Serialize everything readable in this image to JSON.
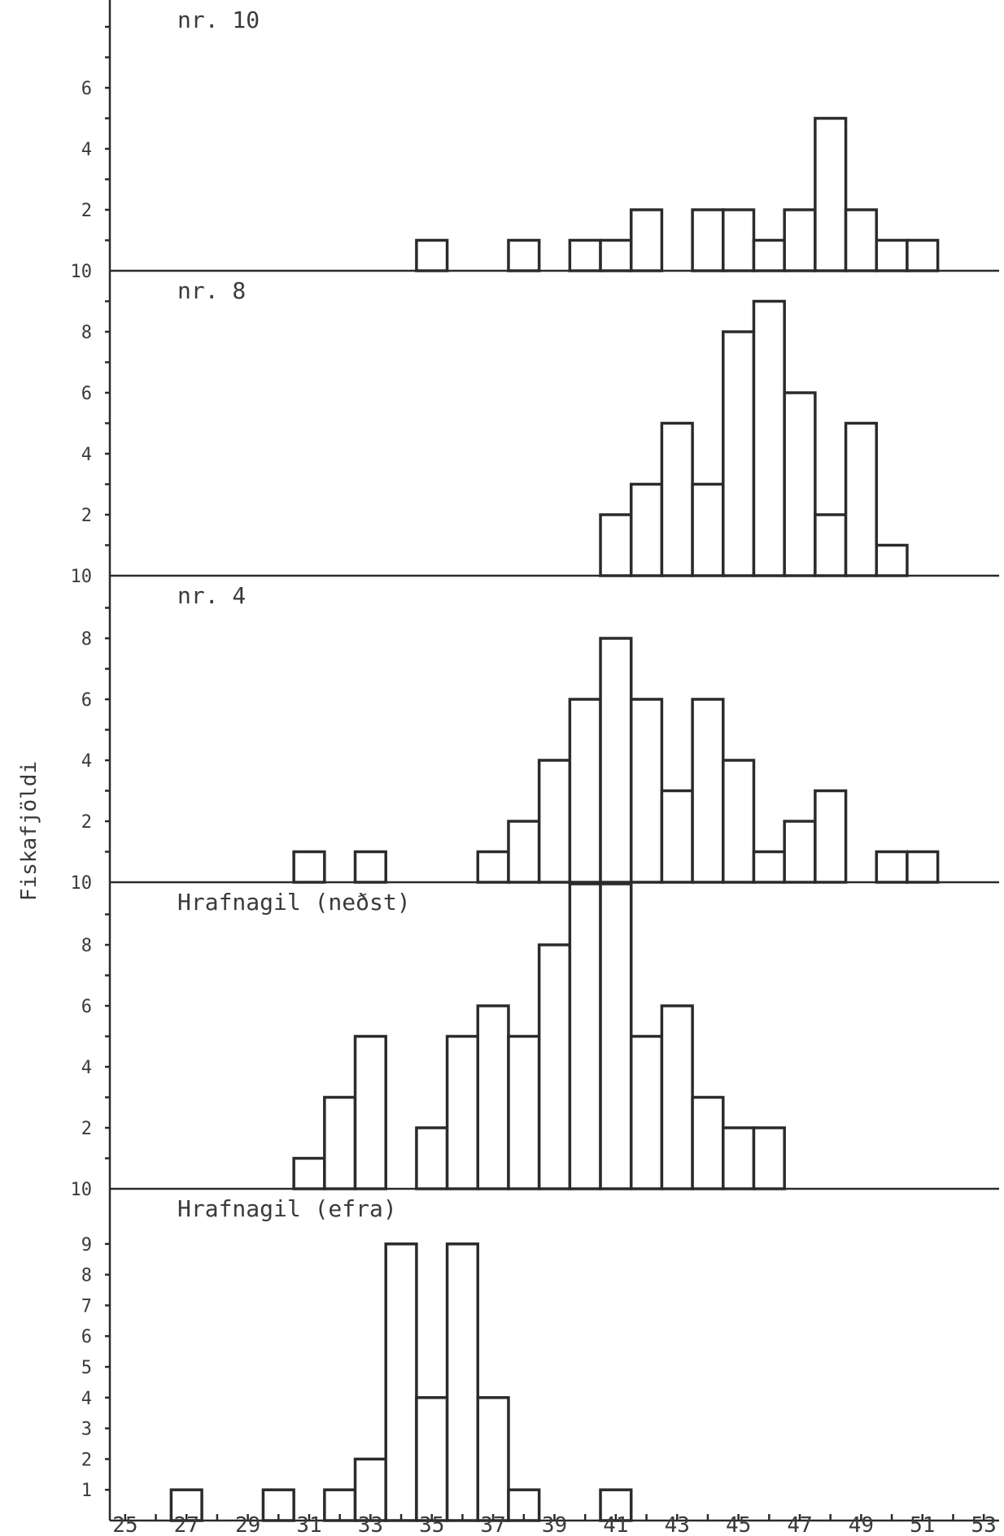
{
  "chart_data": {
    "type": "bar",
    "ylabel": "Fiskafjöldi",
    "x_tick_labels": [
      "25",
      "27",
      "29",
      "31",
      "33",
      "35",
      "37",
      "39",
      "41",
      "43",
      "45",
      "47",
      "49",
      "51",
      "53"
    ],
    "xlim": [
      24.5,
      53.5
    ],
    "bin_width": 1,
    "panels": [
      {
        "name": "nr. 10",
        "ylim": [
          0,
          10
        ],
        "y_tick_labels": [
          {
            "value": 2,
            "label": "2"
          },
          {
            "value": 4,
            "label": "4"
          },
          {
            "value": 6,
            "label": "6"
          },
          {
            "value": 10,
            "label": "10"
          }
        ],
        "bins": [
          {
            "x": 35,
            "count": 1
          },
          {
            "x": 38,
            "count": 1
          },
          {
            "x": 40,
            "count": 1
          },
          {
            "x": 41,
            "count": 1
          },
          {
            "x": 42,
            "count": 2
          },
          {
            "x": 44,
            "count": 2
          },
          {
            "x": 45,
            "count": 2
          },
          {
            "x": 46,
            "count": 1
          },
          {
            "x": 47,
            "count": 2
          },
          {
            "x": 48,
            "count": 5
          },
          {
            "x": 49,
            "count": 2
          },
          {
            "x": 50,
            "count": 1
          },
          {
            "x": 51,
            "count": 1
          }
        ]
      },
      {
        "name": "nr. 8",
        "ylim": [
          0,
          10
        ],
        "y_tick_labels": [
          {
            "value": 2,
            "label": "2"
          },
          {
            "value": 4,
            "label": "4"
          },
          {
            "value": 6,
            "label": "6"
          },
          {
            "value": 8,
            "label": "8"
          },
          {
            "value": 10,
            "label": "10"
          }
        ],
        "bins": [
          {
            "x": 41,
            "count": 2
          },
          {
            "x": 42,
            "count": 3
          },
          {
            "x": 43,
            "count": 5
          },
          {
            "x": 44,
            "count": 3
          },
          {
            "x": 45,
            "count": 8
          },
          {
            "x": 46,
            "count": 9
          },
          {
            "x": 47,
            "count": 6
          },
          {
            "x": 48,
            "count": 2
          },
          {
            "x": 49,
            "count": 5
          },
          {
            "x": 50,
            "count": 1
          }
        ]
      },
      {
        "name": "nr. 4",
        "ylim": [
          0,
          10
        ],
        "y_tick_labels": [
          {
            "value": 2,
            "label": "2"
          },
          {
            "value": 4,
            "label": "4"
          },
          {
            "value": 6,
            "label": "6"
          },
          {
            "value": 8,
            "label": "8"
          },
          {
            "value": 10,
            "label": "10"
          }
        ],
        "bins": [
          {
            "x": 31,
            "count": 1
          },
          {
            "x": 33,
            "count": 1
          },
          {
            "x": 37,
            "count": 1
          },
          {
            "x": 38,
            "count": 2
          },
          {
            "x": 39,
            "count": 4
          },
          {
            "x": 40,
            "count": 6
          },
          {
            "x": 41,
            "count": 8
          },
          {
            "x": 42,
            "count": 6
          },
          {
            "x": 43,
            "count": 3
          },
          {
            "x": 44,
            "count": 6
          },
          {
            "x": 45,
            "count": 4
          },
          {
            "x": 46,
            "count": 1
          },
          {
            "x": 47,
            "count": 2
          },
          {
            "x": 48,
            "count": 3
          },
          {
            "x": 50,
            "count": 1
          },
          {
            "x": 51,
            "count": 1
          }
        ]
      },
      {
        "name": "Hrafnagil (neðst)",
        "ylim": [
          0,
          10
        ],
        "y_tick_labels": [
          {
            "value": 2,
            "label": "2"
          },
          {
            "value": 4,
            "label": "4"
          },
          {
            "value": 6,
            "label": "6"
          },
          {
            "value": 8,
            "label": "8"
          },
          {
            "value": 10,
            "label": "10"
          }
        ],
        "bins": [
          {
            "x": 31,
            "count": 1
          },
          {
            "x": 32,
            "count": 3
          },
          {
            "x": 33,
            "count": 5
          },
          {
            "x": 35,
            "count": 2
          },
          {
            "x": 36,
            "count": 5
          },
          {
            "x": 37,
            "count": 6
          },
          {
            "x": 38,
            "count": 5
          },
          {
            "x": 39,
            "count": 8
          },
          {
            "x": 40,
            "count": 10
          },
          {
            "x": 41,
            "count": 10
          },
          {
            "x": 42,
            "count": 5
          },
          {
            "x": 43,
            "count": 6
          },
          {
            "x": 44,
            "count": 3
          },
          {
            "x": 45,
            "count": 2
          },
          {
            "x": 46,
            "count": 2
          }
        ]
      },
      {
        "name": "Hrafnagil (efra)",
        "ylim": [
          0,
          10
        ],
        "y_tick_labels": [
          {
            "value": 1,
            "label": "1"
          },
          {
            "value": 2,
            "label": "2"
          },
          {
            "value": 3,
            "label": "3"
          },
          {
            "value": 4,
            "label": "4"
          },
          {
            "value": 5,
            "label": "5"
          },
          {
            "value": 6,
            "label": "6"
          },
          {
            "value": 7,
            "label": "7"
          },
          {
            "value": 8,
            "label": "8"
          },
          {
            "value": 9,
            "label": "9"
          }
        ],
        "bins": [
          {
            "x": 27,
            "count": 1
          },
          {
            "x": 30,
            "count": 1
          },
          {
            "x": 32,
            "count": 1
          },
          {
            "x": 33,
            "count": 2
          },
          {
            "x": 34,
            "count": 9
          },
          {
            "x": 35,
            "count": 4
          },
          {
            "x": 36,
            "count": 9
          },
          {
            "x": 37,
            "count": 4
          },
          {
            "x": 38,
            "count": 1
          },
          {
            "x": 41,
            "count": 1
          }
        ]
      }
    ]
  }
}
